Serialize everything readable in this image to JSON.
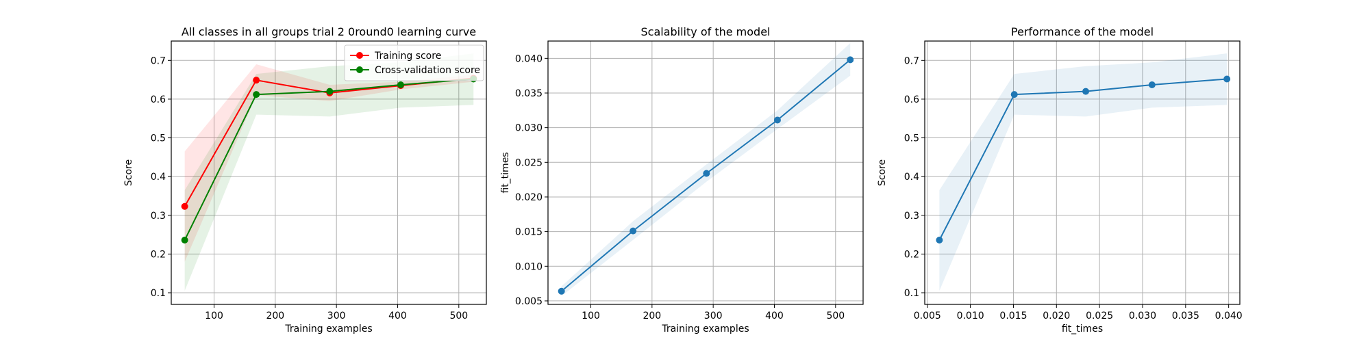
{
  "chart_data": [
    {
      "id": "learning",
      "type": "line",
      "title": "All classes in all groups trial 2 0round0 learning curve",
      "xlabel": "Training examples",
      "ylabel": "Score",
      "xlim": [
        30,
        545
      ],
      "ylim": [
        0.07,
        0.75
      ],
      "xticks": [
        100,
        200,
        300,
        400,
        500
      ],
      "yticks": [
        0.1,
        0.2,
        0.3,
        0.4,
        0.5,
        0.6,
        0.7
      ],
      "grid": true,
      "legend": "top-right",
      "x": [
        52,
        169,
        289,
        405,
        524
      ],
      "series": [
        {
          "name": "Training score",
          "color": "#ff0000",
          "values": [
            0.323,
            0.649,
            0.616,
            0.635,
            0.654
          ],
          "band_lower": [
            0.18,
            0.61,
            0.595,
            0.625,
            0.645
          ],
          "band_upper": [
            0.465,
            0.69,
            0.637,
            0.645,
            0.663
          ]
        },
        {
          "name": "Cross-validation score",
          "color": "#008000",
          "values": [
            0.236,
            0.612,
            0.62,
            0.637,
            0.652
          ],
          "band_lower": [
            0.105,
            0.56,
            0.555,
            0.578,
            0.585
          ],
          "band_upper": [
            0.365,
            0.665,
            0.685,
            0.695,
            0.718
          ]
        }
      ]
    },
    {
      "id": "scalability",
      "type": "line",
      "title": "Scalability of the model",
      "xlabel": "Training examples",
      "ylabel": "fit_times",
      "xlim": [
        30,
        545
      ],
      "ylim": [
        0.0045,
        0.0425
      ],
      "xticks": [
        100,
        200,
        300,
        400,
        500
      ],
      "yticks": [
        0.005,
        0.01,
        0.015,
        0.02,
        0.025,
        0.03,
        0.035,
        0.04
      ],
      "ytick_decimals": 3,
      "grid": true,
      "x": [
        52,
        169,
        289,
        405,
        524
      ],
      "series": [
        {
          "color": "#1f77b4",
          "values": [
            0.0064,
            0.0151,
            0.0234,
            0.0311,
            0.0398
          ],
          "band_lower": [
            0.0057,
            0.0138,
            0.0222,
            0.0298,
            0.0375
          ],
          "band_upper": [
            0.0071,
            0.0165,
            0.0247,
            0.0325,
            0.0422
          ]
        }
      ]
    },
    {
      "id": "performance",
      "type": "line",
      "title": "Performance of the model",
      "xlabel": "fit_times",
      "ylabel": "Score",
      "xlim": [
        0.0047,
        0.0413
      ],
      "ylim": [
        0.07,
        0.75
      ],
      "xticks": [
        0.005,
        0.01,
        0.015,
        0.02,
        0.025,
        0.03,
        0.035,
        0.04
      ],
      "xtick_decimals": 3,
      "yticks": [
        0.1,
        0.2,
        0.3,
        0.4,
        0.5,
        0.6,
        0.7
      ],
      "grid": true,
      "x": [
        0.0064,
        0.0151,
        0.0234,
        0.0311,
        0.0398
      ],
      "series": [
        {
          "color": "#1f77b4",
          "values": [
            0.236,
            0.612,
            0.62,
            0.637,
            0.652
          ],
          "band_lower": [
            0.105,
            0.56,
            0.555,
            0.578,
            0.585
          ],
          "band_upper": [
            0.365,
            0.665,
            0.685,
            0.695,
            0.718
          ]
        }
      ]
    }
  ]
}
